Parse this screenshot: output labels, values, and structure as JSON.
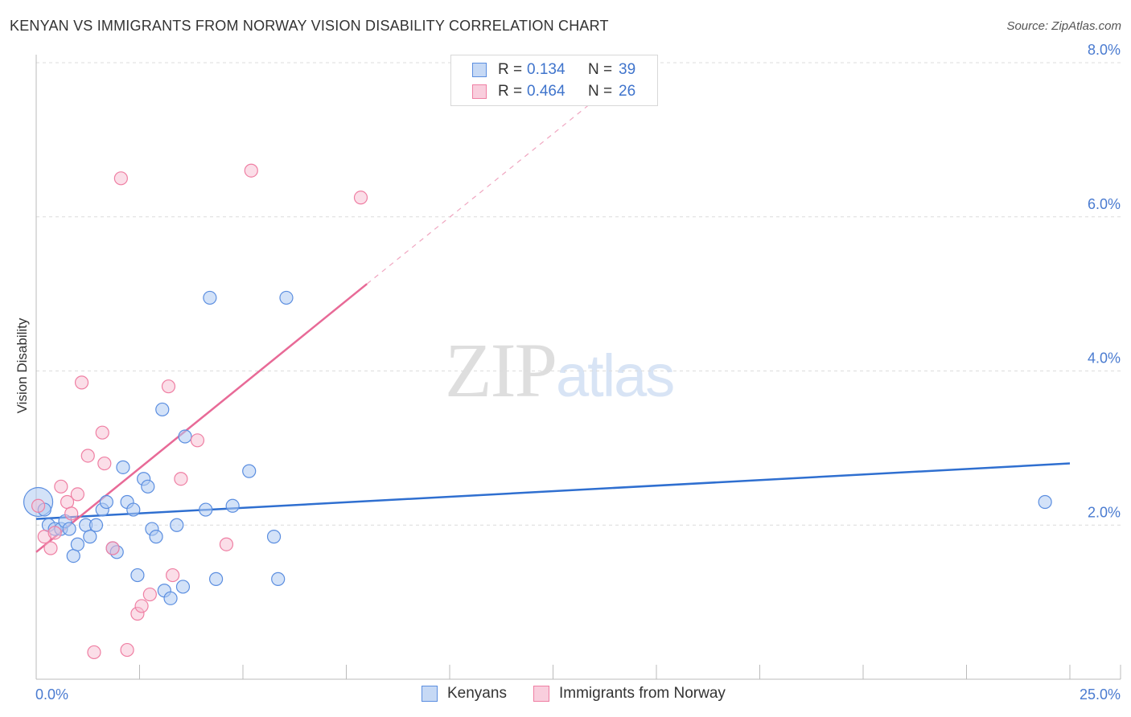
{
  "header": {
    "title": "KENYAN VS IMMIGRANTS FROM NORWAY VISION DISABILITY CORRELATION CHART",
    "source": "Source: ZipAtlas.com"
  },
  "watermark": {
    "zip": "ZIP",
    "atlas": "atlas"
  },
  "legend": {
    "rows": [
      {
        "r_label": "R =",
        "r_value": "0.134",
        "n_label": "N =",
        "n_value": "39",
        "color": "#5b8ee0"
      },
      {
        "r_label": "R =",
        "r_value": "0.464",
        "n_label": "N =",
        "n_value": "26",
        "color": "#ef7fa3"
      }
    ]
  },
  "bottom_legend": {
    "items": [
      {
        "label": "Kenyans",
        "color": "#5b8ee0"
      },
      {
        "label": "Immigrants from Norway",
        "color": "#ef7fa3"
      }
    ]
  },
  "chart_data": {
    "type": "scatter",
    "title": "KENYAN VS IMMIGRANTS FROM NORWAY VISION DISABILITY CORRELATION CHART",
    "xlabel": "",
    "ylabel": "Vision Disability",
    "xlim": [
      0,
      25
    ],
    "ylim": [
      0,
      8.0
    ],
    "x_tick_labels": [
      "0.0%",
      "25.0%"
    ],
    "y_ticks": [
      2.0,
      4.0,
      6.0,
      8.0
    ],
    "y_tick_labels": [
      "2.0%",
      "4.0%",
      "6.0%",
      "8.0%"
    ],
    "grid": true,
    "series": [
      {
        "name": "Kenyans",
        "color": "#5b8ee0",
        "points": [
          [
            0.05,
            2.3
          ],
          [
            0.2,
            2.2
          ],
          [
            0.3,
            2.0
          ],
          [
            0.45,
            1.95
          ],
          [
            0.6,
            1.95
          ],
          [
            0.7,
            2.05
          ],
          [
            0.8,
            1.95
          ],
          [
            0.9,
            1.6
          ],
          [
            1.0,
            1.75
          ],
          [
            1.2,
            2.0
          ],
          [
            1.3,
            1.85
          ],
          [
            1.45,
            2.0
          ],
          [
            1.6,
            2.2
          ],
          [
            1.7,
            2.3
          ],
          [
            1.85,
            1.7
          ],
          [
            1.95,
            1.65
          ],
          [
            2.1,
            2.75
          ],
          [
            2.2,
            2.3
          ],
          [
            2.35,
            2.2
          ],
          [
            2.45,
            1.35
          ],
          [
            2.6,
            2.6
          ],
          [
            2.7,
            2.5
          ],
          [
            2.8,
            1.95
          ],
          [
            2.9,
            1.85
          ],
          [
            3.05,
            3.5
          ],
          [
            3.1,
            1.15
          ],
          [
            3.25,
            1.05
          ],
          [
            3.4,
            2.0
          ],
          [
            3.55,
            1.2
          ],
          [
            3.6,
            3.15
          ],
          [
            4.1,
            2.2
          ],
          [
            4.2,
            4.95
          ],
          [
            4.35,
            1.3
          ],
          [
            4.75,
            2.25
          ],
          [
            5.15,
            2.7
          ],
          [
            5.75,
            1.85
          ],
          [
            5.85,
            1.3
          ],
          [
            6.05,
            4.95
          ],
          [
            24.4,
            2.3
          ]
        ],
        "trend": {
          "x": [
            0,
            25
          ],
          "y": [
            2.08,
            2.8
          ]
        }
      },
      {
        "name": "Immigrants from Norway",
        "color": "#ef7fa3",
        "points": [
          [
            0.05,
            2.25
          ],
          [
            0.2,
            1.85
          ],
          [
            0.35,
            1.7
          ],
          [
            0.45,
            1.9
          ],
          [
            0.6,
            2.5
          ],
          [
            0.75,
            2.3
          ],
          [
            0.85,
            2.15
          ],
          [
            1.0,
            2.4
          ],
          [
            1.1,
            3.85
          ],
          [
            1.25,
            2.9
          ],
          [
            1.4,
            0.35
          ],
          [
            1.6,
            3.2
          ],
          [
            1.65,
            2.8
          ],
          [
            1.85,
            1.7
          ],
          [
            2.05,
            6.5
          ],
          [
            2.2,
            0.38
          ],
          [
            2.45,
            0.85
          ],
          [
            2.55,
            0.95
          ],
          [
            2.75,
            1.1
          ],
          [
            3.2,
            3.8
          ],
          [
            3.3,
            1.35
          ],
          [
            3.5,
            2.6
          ],
          [
            3.9,
            3.1
          ],
          [
            4.6,
            1.75
          ],
          [
            5.2,
            6.6
          ],
          [
            7.85,
            6.25
          ]
        ],
        "trend": {
          "x": [
            0,
            8.0
          ],
          "y": [
            1.65,
            5.13
          ]
        },
        "trend_extended": {
          "x": [
            8.0,
            13.5
          ],
          "y": [
            5.13,
            7.51
          ]
        }
      }
    ]
  }
}
